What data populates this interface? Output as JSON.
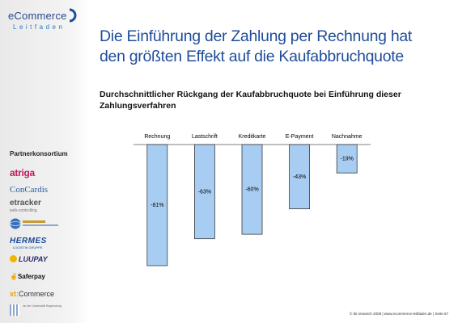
{
  "brand": {
    "name": "eCommerce",
    "tagline": "Leitfaden"
  },
  "sidebar": {
    "partner_heading": "Partnerkonsortium",
    "partners": {
      "atriga": "atriga",
      "concardis": "ConCardis",
      "etracker": "etracker",
      "etracker_sub": "web-controlling",
      "hermes": "HERMES",
      "hermes_sub": "LOGISTIK GRUPPE",
      "luupay": "LUUPAY",
      "saferpay": "Saferpay",
      "xt_prefix": "xt:",
      "xt_suffix": "Commerce",
      "univ_sub": "an der Universität Regensburg"
    }
  },
  "slide": {
    "title": "Die Einführung der Zahlung per Rechnung hat den größten Effekt auf die Kaufabbruchquote",
    "subtitle": "Durchschnittlicher Rückgang der Kaufabbruchquote bei Einführung dieser Zahlungsverfahren",
    "footer": "© ibi research 2008 | www.ecommerce-leitfaden.de | Seite 67"
  },
  "colors": {
    "bar_fill": "#a8cdf2",
    "bar_stroke": "#3a3a3a",
    "title": "#1f4d9a"
  },
  "chart_data": {
    "type": "bar",
    "categories": [
      "Rechnung",
      "Lastschrift",
      "Kreditkarte",
      "E-Payment",
      "Nachnahme"
    ],
    "values": [
      -81,
      -63,
      -60,
      -43,
      -19
    ],
    "data_labels": [
      "-81%",
      "-63%",
      "-60%",
      "-43%",
      "-19%"
    ],
    "title": "",
    "xlabel": "",
    "ylabel": "",
    "ylim": [
      -81,
      0
    ],
    "grid": false,
    "legend": "none"
  }
}
